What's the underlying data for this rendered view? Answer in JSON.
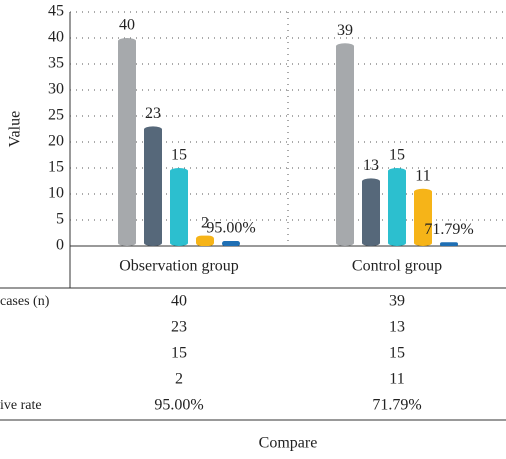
{
  "chart_data": {
    "type": "bar",
    "y_label": "Value",
    "x_label": "Compare",
    "categories": [
      "Observation group",
      "Control group"
    ],
    "series": [
      {
        "name": "cases (n)",
        "color": "#a6a9ac",
        "values": [
          40,
          39
        ]
      },
      {
        "name": null,
        "color": "#56687a",
        "values": [
          23,
          13
        ]
      },
      {
        "name": null,
        "color": "#2cbfcf",
        "values": [
          15,
          15
        ]
      },
      {
        "name": null,
        "color": "#f6b418",
        "values": [
          2,
          11
        ]
      },
      {
        "name": "ive rate",
        "color": "#1f6fb4",
        "values": [
          0.95,
          0.7179
        ],
        "value_labels": [
          "95.00%",
          "71.79%"
        ]
      }
    ],
    "ylim": [
      0,
      45
    ],
    "yticks": [
      0,
      5,
      10,
      15,
      20,
      25,
      30,
      35,
      40,
      45
    ],
    "grid": true
  }
}
